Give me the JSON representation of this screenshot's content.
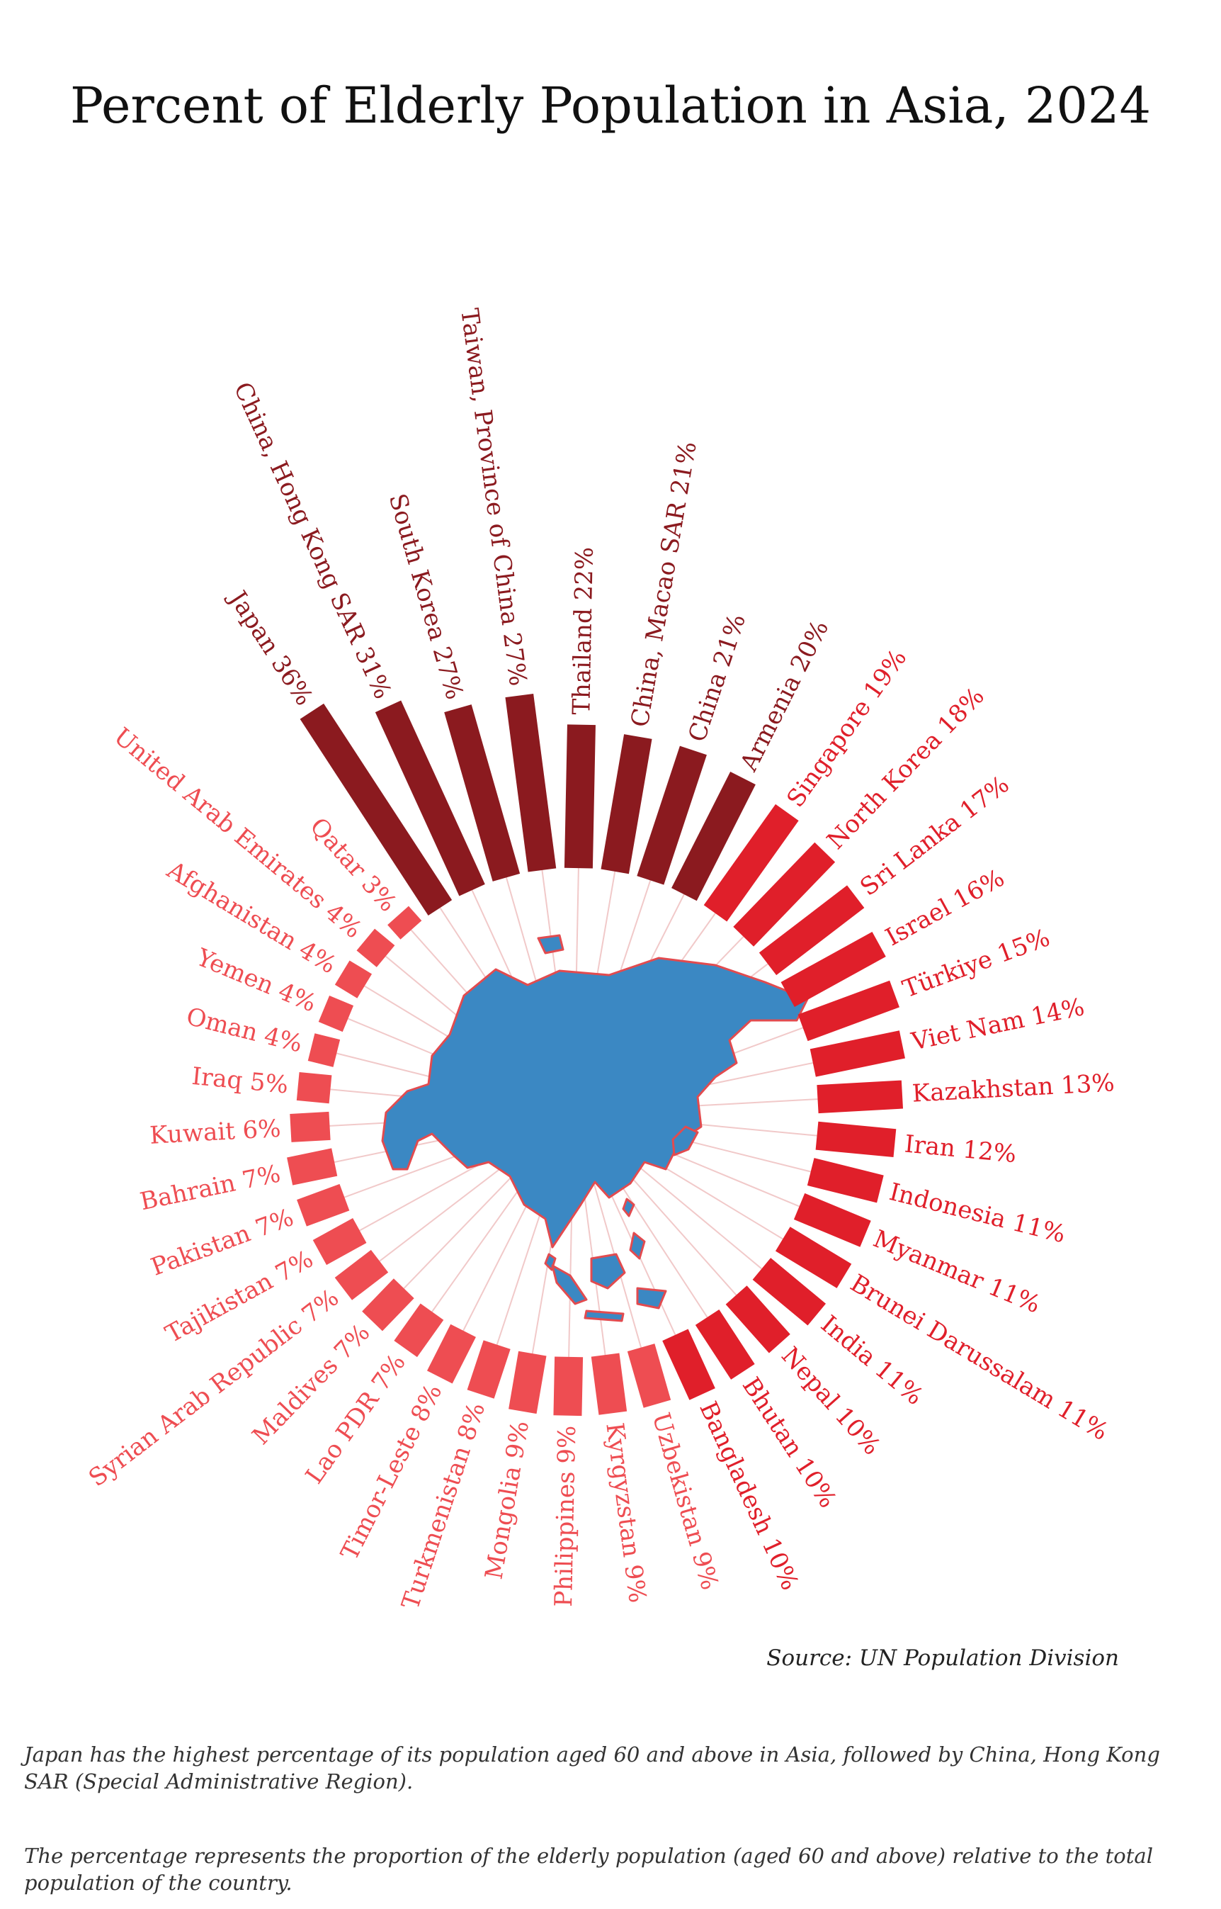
{
  "chart_data": {
    "type": "bar",
    "layout": "radial",
    "title": "Percent of Elderly Population in Asia, 2024",
    "unit": "%",
    "categories": [
      "Thailand",
      "China, Macao SAR",
      "China",
      "Armenia",
      "Singapore",
      "North Korea",
      "Sri Lanka",
      "Israel",
      "Türkiye",
      "Viet Nam",
      "Kazakhstan",
      "Iran",
      "Indonesia",
      "Myanmar",
      "Brunei Darussalam",
      "India",
      "Nepal",
      "Bhutan",
      "Bangladesh",
      "Uzbekistan",
      "Kyrgyzstan",
      "Philippines",
      "Mongolia",
      "Turkmenistan",
      "Timor-Leste",
      "Lao PDR",
      "Maldives",
      "Syrian Arab Republic",
      "Tajikistan",
      "Pakistan",
      "Bahrain",
      "Kuwait",
      "Iraq",
      "Oman",
      "Yemen",
      "Afghanistan",
      "United Arab Emirates",
      "Qatar",
      "Japan",
      "China, Hong Kong SAR",
      "South Korea",
      "Taiwan, Province of China"
    ],
    "values": [
      22,
      21,
      21,
      20,
      19,
      18,
      17,
      16,
      15,
      14,
      13,
      12,
      11,
      11,
      11,
      11,
      10,
      10,
      10,
      9,
      9,
      9,
      9,
      8,
      8,
      7,
      7,
      7,
      7,
      7,
      7,
      6,
      5,
      4,
      4,
      4,
      4,
      3,
      36,
      31,
      27,
      27
    ],
    "labels": [
      "Thailand 22%",
      "China, Macao SAR 21%",
      "China 21%",
      "Armenia 20%",
      "Singapore 19%",
      "North Korea 18%",
      "Sri Lanka 17%",
      "Israel 16%",
      "Türkiye 15%",
      "Viet Nam 14%",
      "Kazakhstan 13%",
      "Iran 12%",
      "Indonesia 11%",
      "Myanmar 11%",
      "Brunei Darussalam 11%",
      "India 11%",
      "Nepal 10%",
      "Bhutan 10%",
      "Bangladesh 10%",
      "Uzbekistan 9%",
      "Kyrgyzstan 9%",
      "Philippines 9%",
      "Mongolia 9%",
      "Turkmenistan 8%",
      "Timor-Leste 8%",
      "Lao PDR 7%",
      "Maldives 7%",
      "Syrian Arab Republic 7%",
      "Tajikistan 7%",
      "Pakistan 7%",
      "Bahrain 7%",
      "Kuwait 6%",
      "Iraq 5%",
      "Oman 4%",
      "Yemen 4%",
      "Afghanistan 4%",
      "United Arab Emirates 4%",
      "Qatar 3%",
      "Japan 36%",
      "China, Hong Kong SAR 31%",
      "South Korea 27%",
      "Taiwan, Province of China 27%"
    ],
    "colors": {
      "high": "#8b1a1f",
      "mid": "#e01f2a",
      "low": "#ee4d52",
      "spoke": "#f1c9c9",
      "map": "#3b88c3",
      "map_outline": "#e24b4f"
    },
    "source": "Source: UN Population Division"
  },
  "notes": [
    "Japan has the highest percentage of its population aged 60 and above in Asia, followed by China, Hong Kong SAR (Special Administrative Region).",
    "The percentage represents the proportion of the elderly population (aged 60 and above) relative to the total population of the country."
  ]
}
